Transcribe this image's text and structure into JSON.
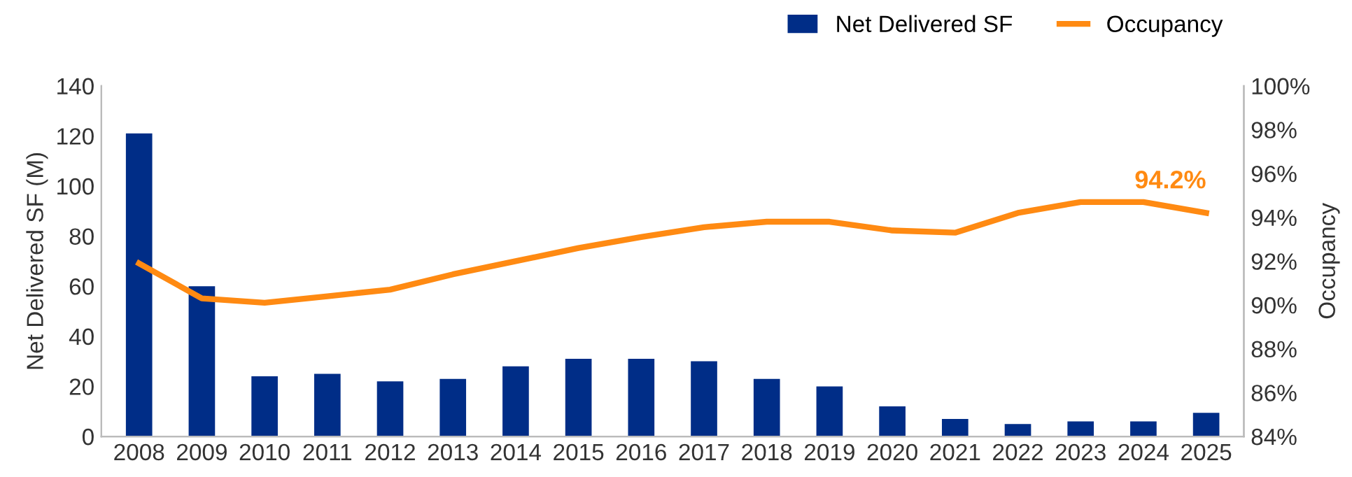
{
  "chart_data": {
    "type": "bar",
    "categories": [
      "2008",
      "2009",
      "2010",
      "2011",
      "2012",
      "2013",
      "2014",
      "2015",
      "2016",
      "2017",
      "2018",
      "2019",
      "2020",
      "2021",
      "2022",
      "2023",
      "2024",
      "2025"
    ],
    "series": [
      {
        "name": "Net Delivered SF",
        "color": "#002d87",
        "values": [
          121,
          60,
          24,
          25,
          22,
          23,
          28,
          31,
          31,
          30,
          23,
          20,
          12,
          7,
          5,
          6,
          6,
          9.4
        ]
      },
      {
        "name": "Occupancy",
        "type": "line",
        "axis": "y2",
        "color": "#ff8a12",
        "values": [
          91.9,
          90.3,
          90.1,
          90.4,
          90.7,
          91.4,
          92.0,
          92.6,
          93.1,
          93.55,
          93.8,
          93.8,
          93.4,
          93.3,
          94.2,
          94.7,
          94.7,
          94.2
        ]
      }
    ],
    "ylabel": "Net Delivered SF (M)",
    "y2label": "Occupancy",
    "ylim": [
      0,
      140
    ],
    "yticks": [
      0,
      20,
      40,
      60,
      80,
      100,
      120,
      140
    ],
    "y2lim": [
      84,
      100
    ],
    "y2ticks": [
      {
        "value": 84,
        "label": "84%"
      },
      {
        "value": 86,
        "label": "86%"
      },
      {
        "value": 88,
        "label": "88%"
      },
      {
        "value": 90,
        "label": "90%"
      },
      {
        "value": 92,
        "label": "92%"
      },
      {
        "value": 94,
        "label": "94%"
      },
      {
        "value": 96,
        "label": "96%"
      },
      {
        "value": 98,
        "label": "98%"
      },
      {
        "value": 100,
        "label": "100%"
      }
    ],
    "annotations": [
      "94.2%"
    ],
    "legend": "top right",
    "grid": false,
    "marker": "none",
    "line_style": "solid"
  }
}
